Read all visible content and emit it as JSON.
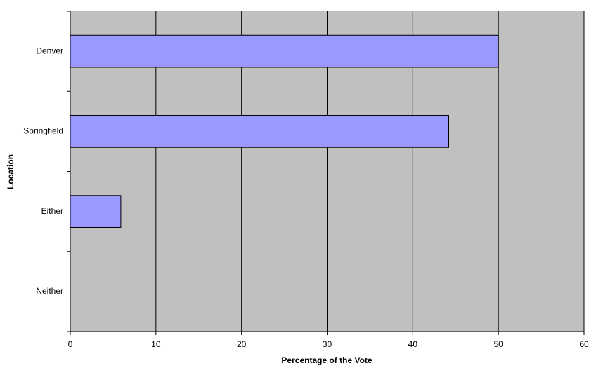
{
  "chart_data": {
    "type": "barh",
    "categories": [
      "Denver",
      "Springfield",
      "Either",
      "Neither"
    ],
    "values": [
      50,
      44.2,
      5.9,
      0
    ],
    "color": "#9999ff",
    "xlabel": "Percentage of the Vote",
    "ylabel": "Location",
    "xlim": [
      0,
      60
    ],
    "xticks": [
      0,
      10,
      20,
      30,
      40,
      50,
      60
    ],
    "grid": true
  }
}
